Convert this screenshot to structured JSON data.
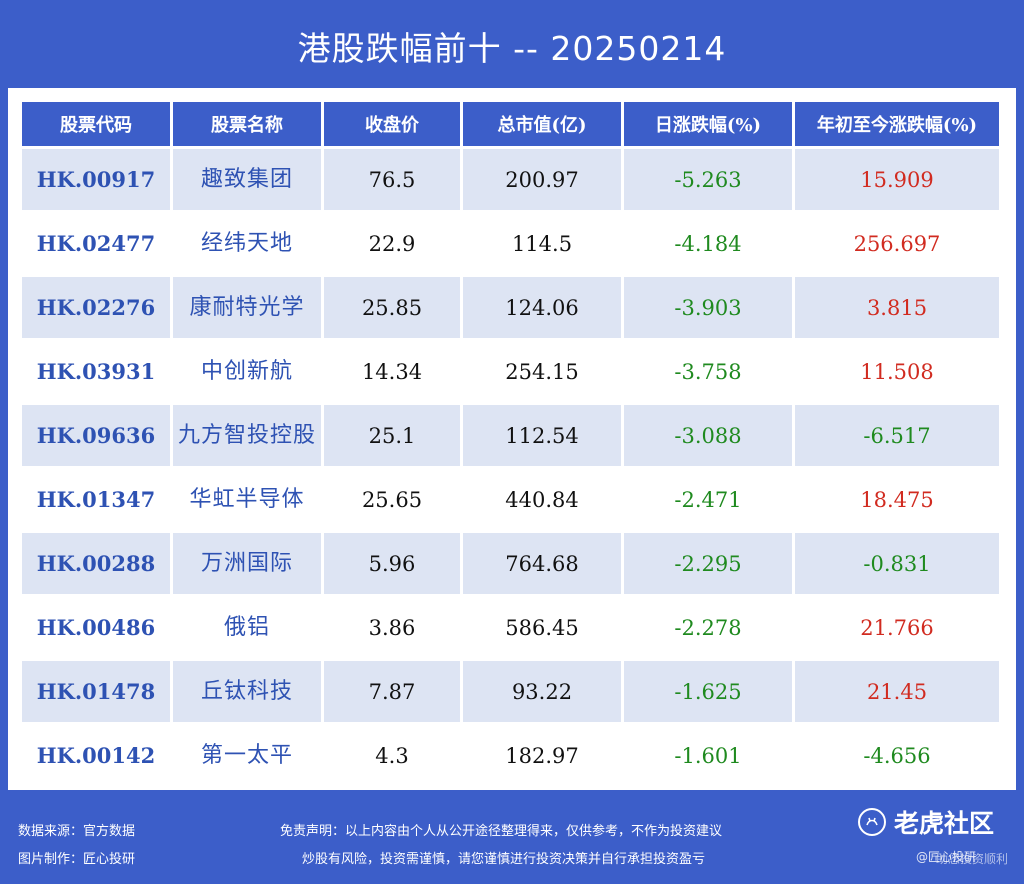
{
  "title": "港股跌幅前十 -- 20250214",
  "table": {
    "headers": [
      "股票代码",
      "股票名称",
      "收盘价",
      "总市值(亿)",
      "日涨跌幅(%)",
      "年初至今涨跌幅(%)"
    ],
    "rows": [
      {
        "code": "HK.00917",
        "name": "趣致集团",
        "close": "76.5",
        "mcap": "200.97",
        "day": "-5.263",
        "ytd": "15.909"
      },
      {
        "code": "HK.02477",
        "name": "经纬天地",
        "close": "22.9",
        "mcap": "114.5",
        "day": "-4.184",
        "ytd": "256.697"
      },
      {
        "code": "HK.02276",
        "name": "康耐特光学",
        "close": "25.85",
        "mcap": "124.06",
        "day": "-3.903",
        "ytd": "3.815"
      },
      {
        "code": "HK.03931",
        "name": "中创新航",
        "close": "14.34",
        "mcap": "254.15",
        "day": "-3.758",
        "ytd": "11.508"
      },
      {
        "code": "HK.09636",
        "name": "九方智投控股",
        "close": "25.1",
        "mcap": "112.54",
        "day": "-3.088",
        "ytd": "-6.517"
      },
      {
        "code": "HK.01347",
        "name": "华虹半导体",
        "close": "25.65",
        "mcap": "440.84",
        "day": "-2.471",
        "ytd": "18.475"
      },
      {
        "code": "HK.00288",
        "name": "万洲国际",
        "close": "5.96",
        "mcap": "764.68",
        "day": "-2.295",
        "ytd": "-0.831"
      },
      {
        "code": "HK.00486",
        "name": "俄铝",
        "close": "3.86",
        "mcap": "586.45",
        "day": "-2.278",
        "ytd": "21.766"
      },
      {
        "code": "HK.01478",
        "name": "丘钛科技",
        "close": "7.87",
        "mcap": "93.22",
        "day": "-1.625",
        "ytd": "21.45"
      },
      {
        "code": "HK.00142",
        "name": "第一太平",
        "close": "4.3",
        "mcap": "182.97",
        "day": "-1.601",
        "ytd": "-4.656"
      }
    ]
  },
  "footer": {
    "source": "数据来源：官方数据",
    "maker": "图片制作：匠心投研",
    "disclaimer1": "免责声明：以上内容由个人从公开途径整理得来，仅供参考，不作为投资建议",
    "disclaimer2": "炒股有风险，投资需谨慎，请您谨慎进行投资决策并自行承担投资盈亏",
    "brand": "老虎社区",
    "brand_icon": "tiger-icon",
    "handle": "@匠心投研",
    "tagline": "助您投资顺利"
  },
  "colors": {
    "background": "#3c5ec9",
    "header_cell": "#3c5ec9",
    "row_tint": "#dde4f3",
    "code_text": "#2e52b3",
    "negative": "#1f8a1f",
    "positive": "#d12b20"
  }
}
